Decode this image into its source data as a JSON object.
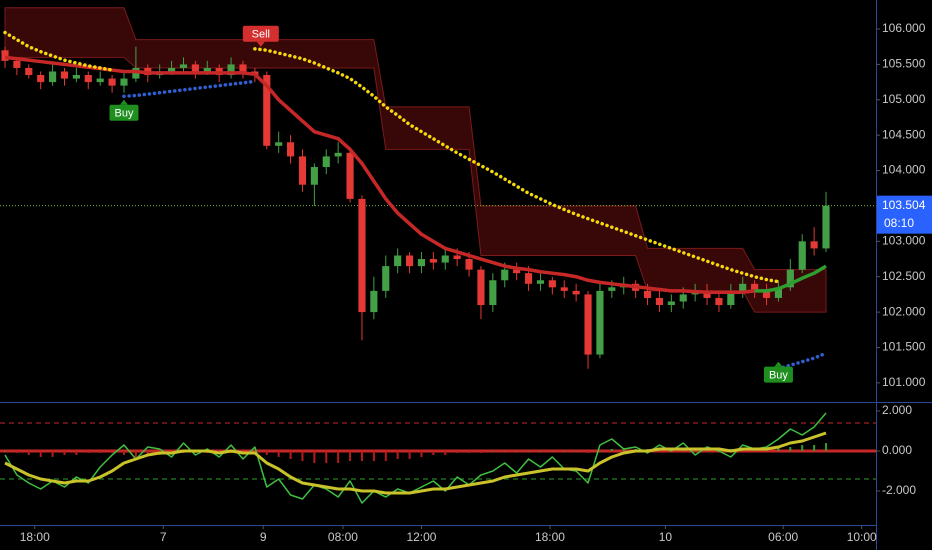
{
  "chart_data": {
    "type": "candlestick",
    "up_color": "#43a047",
    "down_color": "#e53935",
    "open": [
      105.7,
      105.55,
      105.45,
      105.35,
      105.25,
      105.4,
      105.3,
      105.35,
      105.25,
      105.3,
      105.2,
      105.3,
      105.45,
      105.35,
      105.4,
      105.45,
      105.5,
      105.4,
      105.45,
      105.35,
      105.5,
      105.4,
      105.35,
      104.35,
      104.4,
      104.2,
      103.8,
      104.05,
      104.2,
      104.25,
      103.6,
      102.0,
      102.3,
      102.65,
      102.8,
      102.65,
      102.75,
      102.7,
      102.8,
      102.75,
      102.6,
      102.1,
      102.45,
      102.6,
      102.55,
      102.4,
      102.45,
      102.35,
      102.3,
      102.25,
      101.4,
      102.3,
      102.35,
      102.4,
      102.3,
      102.2,
      102.1,
      102.15,
      102.25,
      102.3,
      102.2,
      102.1,
      102.3,
      102.4,
      102.3,
      102.2,
      102.35,
      102.6,
      103.0,
      102.9
    ],
    "high": [
      105.75,
      105.6,
      105.5,
      105.4,
      105.5,
      105.45,
      105.45,
      105.4,
      105.4,
      105.35,
      105.4,
      105.75,
      105.5,
      105.5,
      105.55,
      105.6,
      105.55,
      105.55,
      105.5,
      105.6,
      105.55,
      105.45,
      105.4,
      104.55,
      104.5,
      104.3,
      104.1,
      104.3,
      104.4,
      104.3,
      103.65,
      102.5,
      102.8,
      102.9,
      102.85,
      102.85,
      102.85,
      102.9,
      102.9,
      102.85,
      102.65,
      102.55,
      102.7,
      102.7,
      102.65,
      102.55,
      102.5,
      102.45,
      102.4,
      102.3,
      102.4,
      102.45,
      102.5,
      102.45,
      102.4,
      102.3,
      102.25,
      102.35,
      102.4,
      102.4,
      102.3,
      102.4,
      102.5,
      102.45,
      102.4,
      102.45,
      102.75,
      103.1,
      103.2,
      103.7
    ],
    "low": [
      105.45,
      105.35,
      105.3,
      105.15,
      105.2,
      105.2,
      105.25,
      105.15,
      105.2,
      105.1,
      105.1,
      105.25,
      105.25,
      105.3,
      105.35,
      105.4,
      105.3,
      105.35,
      105.25,
      105.3,
      105.3,
      105.25,
      104.3,
      104.25,
      104.1,
      103.7,
      103.5,
      103.95,
      104.1,
      103.55,
      101.6,
      101.9,
      102.2,
      102.55,
      102.55,
      102.55,
      102.6,
      102.6,
      102.65,
      102.5,
      101.9,
      102.0,
      102.35,
      102.45,
      102.3,
      102.3,
      102.25,
      102.2,
      102.15,
      101.2,
      101.35,
      102.2,
      102.25,
      102.2,
      102.1,
      102.0,
      102.0,
      102.05,
      102.15,
      102.1,
      102.0,
      102.05,
      102.2,
      102.2,
      102.1,
      102.15,
      102.3,
      102.55,
      102.8,
      102.85
    ],
    "close": [
      105.55,
      105.45,
      105.35,
      105.25,
      105.4,
      105.3,
      105.35,
      105.25,
      105.3,
      105.2,
      105.3,
      105.45,
      105.35,
      105.4,
      105.45,
      105.5,
      105.4,
      105.45,
      105.35,
      105.5,
      105.4,
      105.35,
      104.35,
      104.4,
      104.2,
      103.8,
      104.05,
      104.2,
      104.25,
      103.6,
      102.0,
      102.3,
      102.65,
      102.8,
      102.65,
      102.75,
      102.7,
      102.8,
      102.75,
      102.6,
      102.1,
      102.45,
      102.6,
      102.55,
      102.4,
      102.45,
      102.35,
      102.3,
      102.25,
      101.4,
      102.3,
      102.35,
      102.4,
      102.3,
      102.2,
      102.1,
      102.15,
      102.25,
      102.3,
      102.2,
      102.1,
      102.3,
      102.4,
      102.3,
      102.2,
      102.35,
      102.6,
      103.0,
      102.9,
      103.504
    ],
    "cloud": {
      "color": "rgba(160,20,20,0.35)",
      "edge": "#7a1a1a",
      "top": [
        106.3,
        106.3,
        106.3,
        106.3,
        106.3,
        106.3,
        106.3,
        106.3,
        106.3,
        106.3,
        106.3,
        105.85,
        105.85,
        105.85,
        105.85,
        105.85,
        105.85,
        105.85,
        105.85,
        105.85,
        105.85,
        105.85,
        105.85,
        105.85,
        105.85,
        105.85,
        105.85,
        105.85,
        105.85,
        105.85,
        105.85,
        105.85,
        104.9,
        104.9,
        104.9,
        104.9,
        104.9,
        104.9,
        104.9,
        104.9,
        103.5,
        103.5,
        103.5,
        103.5,
        103.5,
        103.5,
        103.5,
        103.5,
        103.5,
        103.5,
        103.5,
        103.5,
        103.5,
        103.5,
        102.9,
        102.9,
        102.9,
        102.9,
        102.9,
        102.9,
        102.9,
        102.9,
        102.9,
        102.6,
        102.6,
        102.6,
        102.6,
        102.6,
        102.6,
        102.6
      ],
      "bottom": [
        105.6,
        105.6,
        105.6,
        105.6,
        105.6,
        105.6,
        105.6,
        105.6,
        105.6,
        105.6,
        105.6,
        105.45,
        105.45,
        105.45,
        105.45,
        105.45,
        105.45,
        105.45,
        105.45,
        105.45,
        105.45,
        105.45,
        105.45,
        105.45,
        105.45,
        105.45,
        105.45,
        105.45,
        105.45,
        105.45,
        105.45,
        105.45,
        104.3,
        104.3,
        104.3,
        104.3,
        104.3,
        104.3,
        104.3,
        104.3,
        102.8,
        102.8,
        102.8,
        102.8,
        102.8,
        102.8,
        102.8,
        102.8,
        102.8,
        102.8,
        102.8,
        102.8,
        102.8,
        102.8,
        102.3,
        102.3,
        102.3,
        102.3,
        102.3,
        102.3,
        102.3,
        102.3,
        102.3,
        102.0,
        102.0,
        102.0,
        102.0,
        102.0,
        102.0,
        102.0
      ]
    },
    "overlays": [
      {
        "color": "#c62828",
        "style": "solid",
        "values": [
          105.6,
          105.58,
          105.56,
          105.54,
          105.52,
          105.5,
          105.48,
          105.46,
          105.44,
          105.42,
          105.4,
          105.4,
          105.38,
          105.38,
          105.38,
          105.38,
          105.38,
          105.38,
          105.38,
          105.38,
          105.38,
          105.36,
          105.2,
          105.0,
          104.85,
          104.7,
          104.55,
          104.5,
          104.45,
          104.3,
          104.1,
          103.85,
          103.6,
          103.4,
          103.25,
          103.1,
          103.0,
          102.9,
          102.85,
          102.8,
          102.75,
          102.7,
          102.65,
          102.62,
          102.6,
          102.57,
          102.55,
          102.53,
          102.5,
          102.45,
          102.42,
          102.4,
          102.38,
          102.36,
          102.34,
          102.32,
          102.3,
          102.3,
          102.29,
          102.28,
          102.28,
          102.28,
          102.28,
          102.3,
          null,
          null,
          null,
          null,
          null,
          null
        ]
      },
      {
        "color": "#2e9e2e",
        "style": "solid",
        "values": [
          null,
          null,
          null,
          null,
          null,
          null,
          null,
          null,
          null,
          null,
          null,
          null,
          null,
          null,
          null,
          null,
          null,
          null,
          null,
          null,
          null,
          null,
          null,
          null,
          null,
          null,
          null,
          null,
          null,
          null,
          null,
          null,
          null,
          null,
          null,
          null,
          null,
          null,
          null,
          null,
          null,
          null,
          null,
          null,
          null,
          null,
          null,
          null,
          null,
          null,
          null,
          null,
          null,
          null,
          null,
          null,
          null,
          null,
          null,
          null,
          null,
          null,
          null,
          102.3,
          102.3,
          102.33,
          102.4,
          102.48,
          102.55,
          102.65
        ]
      },
      {
        "color": "#f5d90a",
        "style": "dotted",
        "values": [
          105.95,
          105.85,
          105.75,
          105.68,
          105.62,
          105.56,
          105.52,
          105.48,
          105.45,
          105.42,
          null,
          null,
          null,
          null,
          null,
          null,
          null,
          null,
          null,
          null,
          null,
          105.72,
          105.7,
          105.66,
          105.62,
          105.58,
          105.52,
          105.45,
          105.38,
          105.3,
          105.18,
          105.05,
          104.9,
          104.78,
          104.65,
          104.55,
          104.45,
          104.35,
          104.25,
          104.16,
          104.07,
          103.98,
          103.88,
          103.78,
          103.68,
          103.6,
          103.52,
          103.45,
          103.38,
          103.32,
          103.26,
          103.2,
          103.14,
          103.08,
          103.02,
          102.96,
          102.9,
          102.84,
          102.78,
          102.72,
          102.66,
          102.6,
          102.55,
          102.5,
          102.46,
          102.43,
          null,
          null,
          null,
          null
        ]
      },
      {
        "color": "#2f5fd0",
        "style": "dotted",
        "values": [
          null,
          null,
          null,
          null,
          null,
          null,
          null,
          null,
          null,
          null,
          105.05,
          105.06,
          105.08,
          105.1,
          105.12,
          105.14,
          105.16,
          105.18,
          105.2,
          105.22,
          105.24,
          105.26,
          null,
          null,
          null,
          null,
          null,
          null,
          null,
          null,
          null,
          null,
          null,
          null,
          null,
          null,
          null,
          null,
          null,
          null,
          null,
          null,
          null,
          null,
          null,
          null,
          null,
          null,
          null,
          null,
          null,
          null,
          null,
          null,
          null,
          null,
          null,
          null,
          null,
          null,
          null,
          null,
          null,
          null,
          null,
          101.2,
          101.25,
          101.3,
          101.35,
          101.42
        ]
      }
    ],
    "signals": [
      {
        "label": "Buy",
        "index": 10,
        "price": 105.0,
        "side": "below",
        "color": "#1e8e1e"
      },
      {
        "label": "Sell",
        "index": 21.5,
        "price": 105.75,
        "side": "above",
        "color": "#d32f2f"
      },
      {
        "label": "Buy",
        "index": 65,
        "price": 101.3,
        "side": "below",
        "color": "#1e8e1e"
      }
    ],
    "last_price": 103.504,
    "countdown": "08:10",
    "last_color": "#2962ff",
    "xlim": [
      -0.42,
      73.2
    ],
    "xticks": [
      {
        "value": 2.5,
        "label": "18:00"
      },
      {
        "value": 13.3,
        "label": "7"
      },
      {
        "value": 21.7,
        "label": "9"
      },
      {
        "value": 28.4,
        "label": "08:00"
      },
      {
        "value": 35,
        "label": "12:00"
      },
      {
        "value": 45.8,
        "label": "18:00"
      },
      {
        "value": 55.5,
        "label": "10"
      },
      {
        "value": 65.4,
        "label": "06:00"
      },
      {
        "value": 72,
        "label": "10:00"
      }
    ],
    "ylim": [
      100.73,
      106.41
    ],
    "yticks": [
      {
        "value": 101,
        "label": "101.000"
      },
      {
        "value": 101.5,
        "label": "101.500"
      },
      {
        "value": 102,
        "label": "102.000"
      },
      {
        "value": 102.5,
        "label": "102.500"
      },
      {
        "value": 103,
        "label": "103.000"
      },
      {
        "value": 103.5,
        "label": "103.500"
      },
      {
        "value": 104,
        "label": "104.000"
      },
      {
        "value": 104.5,
        "label": "104.500"
      },
      {
        "value": 105,
        "label": "105.000"
      },
      {
        "value": 105.5,
        "label": "105.500"
      },
      {
        "value": 106,
        "label": "106.000"
      }
    ],
    "oscillator": {
      "ylim": [
        -3.7,
        2.45
      ],
      "yticks": [
        {
          "value": 2,
          "label": "2.000"
        },
        {
          "value": 0,
          "label": "0.000"
        },
        {
          "value": -2,
          "label": "-2.000"
        }
      ],
      "levels": [
        {
          "value": 1.4,
          "color": "#c62828",
          "style": "dashed"
        },
        {
          "value": 0,
          "color": "#c62828",
          "style": "solid"
        },
        {
          "value": -1.4,
          "color": "#2e9e2e",
          "style": "dashed"
        }
      ],
      "histogram": {
        "up_color": "#2e9e2e",
        "down_color": "#b71c1c",
        "values": [
          0.0,
          -0.1,
          -0.2,
          -0.3,
          -0.3,
          -0.2,
          -0.2,
          -0.1,
          -0.1,
          -0.1,
          -0.2,
          -0.3,
          -0.2,
          -0.2,
          -0.1,
          -0.1,
          -0.1,
          -0.1,
          -0.1,
          -0.1,
          -0.1,
          -0.1,
          -0.2,
          -0.3,
          -0.4,
          -0.5,
          -0.6,
          -0.6,
          -0.6,
          -0.5,
          -0.5,
          -0.5,
          -0.5,
          -0.4,
          -0.4,
          -0.3,
          -0.2,
          -0.2,
          -0.1,
          -0.1,
          -0.1,
          0.0,
          0.0,
          0.0,
          0.0,
          0.0,
          0.0,
          0.0,
          0.0,
          -0.1,
          0.0,
          0.1,
          0.1,
          0.1,
          0.1,
          0.1,
          0.1,
          0.1,
          0.1,
          0.1,
          0.1,
          0.1,
          0.1,
          0.1,
          0.1,
          0.2,
          0.2,
          0.3,
          0.3,
          0.4
        ]
      },
      "lines": [
        {
          "color": "#3fbf3f",
          "width": 1.5,
          "values": [
            -0.2,
            -1.2,
            -1.6,
            -1.9,
            -1.5,
            -1.8,
            -1.3,
            -1.6,
            -0.8,
            -0.2,
            0.3,
            -0.4,
            0.2,
            0.1,
            -0.3,
            0.4,
            -0.2,
            0.1,
            -0.3,
            0.3,
            -0.4,
            0.2,
            -1.8,
            -1.4,
            -2.2,
            -2.4,
            -1.7,
            -1.9,
            -2.3,
            -1.5,
            -2.6,
            -2.0,
            -2.3,
            -1.9,
            -2.1,
            -1.8,
            -1.5,
            -2.0,
            -1.3,
            -1.7,
            -1.2,
            -1.0,
            -0.6,
            -1.1,
            -0.4,
            -0.8,
            -0.3,
            -0.9,
            -1.0,
            -1.6,
            0.3,
            0.6,
            0.1,
            0.2,
            -0.1,
            0.3,
            0.0,
            0.4,
            -0.2,
            0.2,
            0.0,
            -0.3,
            0.3,
            0.1,
            0.2,
            0.6,
            1.1,
            0.8,
            1.2,
            1.9
          ]
        },
        {
          "color": "#c9c22a",
          "width": 3,
          "values": [
            -0.6,
            -0.9,
            -1.2,
            -1.4,
            -1.5,
            -1.6,
            -1.5,
            -1.5,
            -1.3,
            -1.0,
            -0.6,
            -0.4,
            -0.2,
            -0.1,
            -0.1,
            0.0,
            0.0,
            0.0,
            -0.1,
            0.0,
            -0.1,
            -0.1,
            -0.6,
            -0.9,
            -1.3,
            -1.6,
            -1.7,
            -1.8,
            -1.9,
            -1.9,
            -2.0,
            -2.0,
            -2.1,
            -2.1,
            -2.1,
            -2.0,
            -1.9,
            -1.9,
            -1.8,
            -1.7,
            -1.6,
            -1.5,
            -1.3,
            -1.2,
            -1.1,
            -1.0,
            -0.9,
            -0.9,
            -0.9,
            -1.0,
            -0.6,
            -0.3,
            -0.1,
            0.0,
            0.0,
            0.1,
            0.1,
            0.1,
            0.1,
            0.1,
            0.1,
            0.0,
            0.1,
            0.1,
            0.1,
            0.2,
            0.4,
            0.5,
            0.7,
            0.9
          ]
        }
      ]
    }
  }
}
